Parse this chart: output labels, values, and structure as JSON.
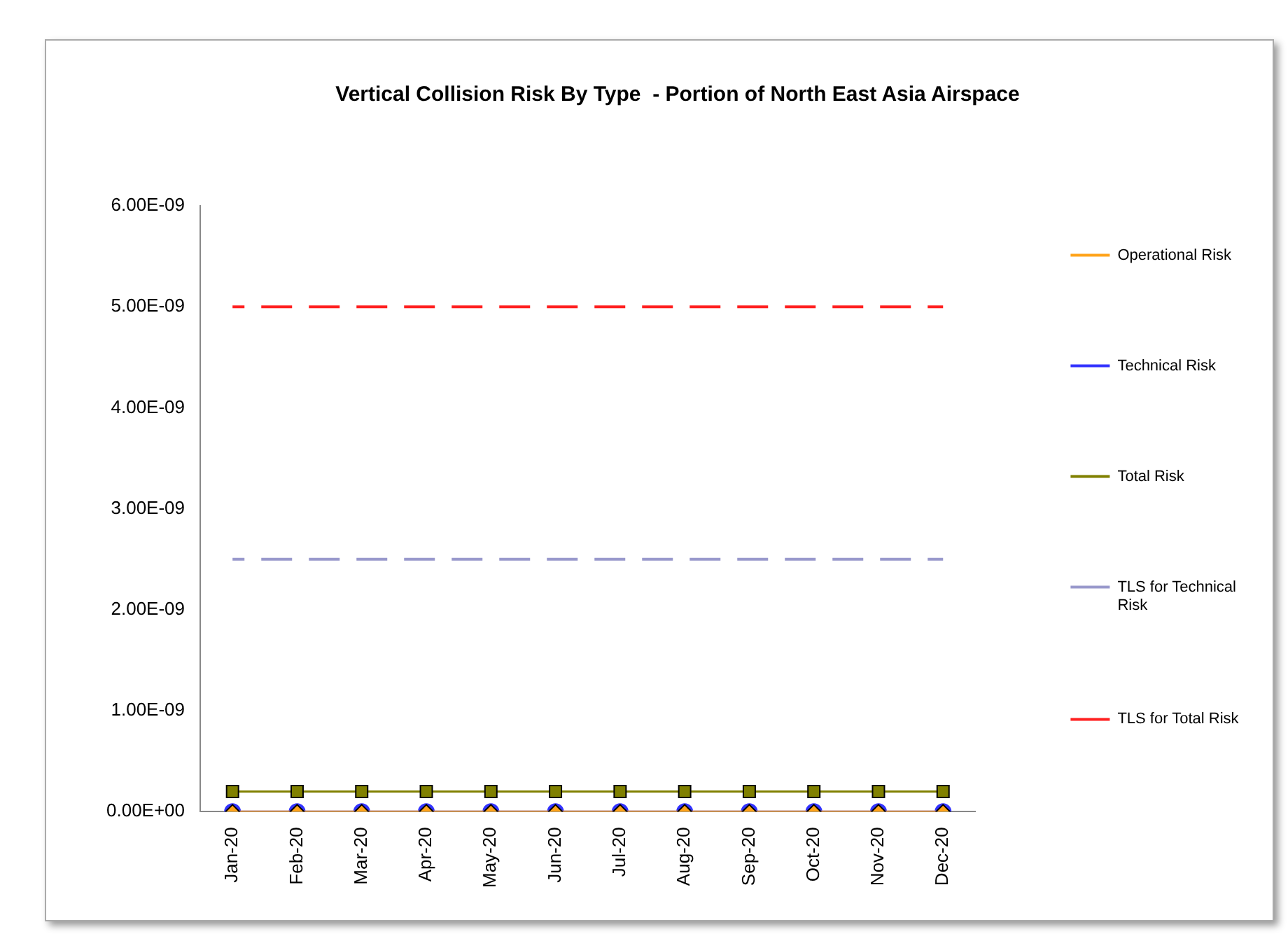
{
  "chart_data": {
    "type": "line",
    "title": "Vertical Collision Risk By Type  - Portion of North East Asia Airspace",
    "categories": [
      "Jan-20",
      "Feb-20",
      "Mar-20",
      "Apr-20",
      "May-20",
      "Jun-20",
      "Jul-20",
      "Aug-20",
      "Sep-20",
      "Oct-20",
      "Nov-20",
      "Dec-20"
    ],
    "series": [
      {
        "name": "Operational Risk",
        "color": "#ffa31a",
        "marker": "diamond",
        "values": [
          0,
          0,
          0,
          0,
          0,
          0,
          0,
          0,
          0,
          0,
          0,
          0
        ]
      },
      {
        "name": "Technical Risk",
        "color": "#3333ff",
        "marker": "circle",
        "values": [
          0,
          0,
          0,
          0,
          0,
          0,
          0,
          0,
          0,
          0,
          0,
          0
        ]
      },
      {
        "name": "Total Risk",
        "color": "#808000",
        "marker": "square",
        "values": [
          2e-10,
          2e-10,
          2e-10,
          2e-10,
          2e-10,
          2e-10,
          2e-10,
          2e-10,
          2e-10,
          2e-10,
          2e-10,
          2e-10
        ]
      },
      {
        "name": "TLS for Technical Risk",
        "color": "#9999cc",
        "marker": "none",
        "line_style": "dashed",
        "values": [
          2.5e-09,
          2.5e-09,
          2.5e-09,
          2.5e-09,
          2.5e-09,
          2.5e-09,
          2.5e-09,
          2.5e-09,
          2.5e-09,
          2.5e-09,
          2.5e-09,
          2.5e-09
        ]
      },
      {
        "name": "TLS for Total Risk",
        "color": "#ff2020",
        "marker": "none",
        "line_style": "dashed",
        "values": [
          5e-09,
          5e-09,
          5e-09,
          5e-09,
          5e-09,
          5e-09,
          5e-09,
          5e-09,
          5e-09,
          5e-09,
          5e-09,
          5e-09
        ]
      }
    ],
    "ylim": [
      0,
      6e-09
    ],
    "yticks": [
      {
        "value": 0,
        "label": "0.00E+00"
      },
      {
        "value": 1e-09,
        "label": "1.00E-09"
      },
      {
        "value": 2e-09,
        "label": "2.00E-09"
      },
      {
        "value": 3e-09,
        "label": "3.00E-09"
      },
      {
        "value": 4e-09,
        "label": "4.00E-09"
      },
      {
        "value": 5e-09,
        "label": "5.00E-09"
      },
      {
        "value": 6e-09,
        "label": "6.00E-09"
      }
    ],
    "grid": false,
    "legend": "right"
  }
}
